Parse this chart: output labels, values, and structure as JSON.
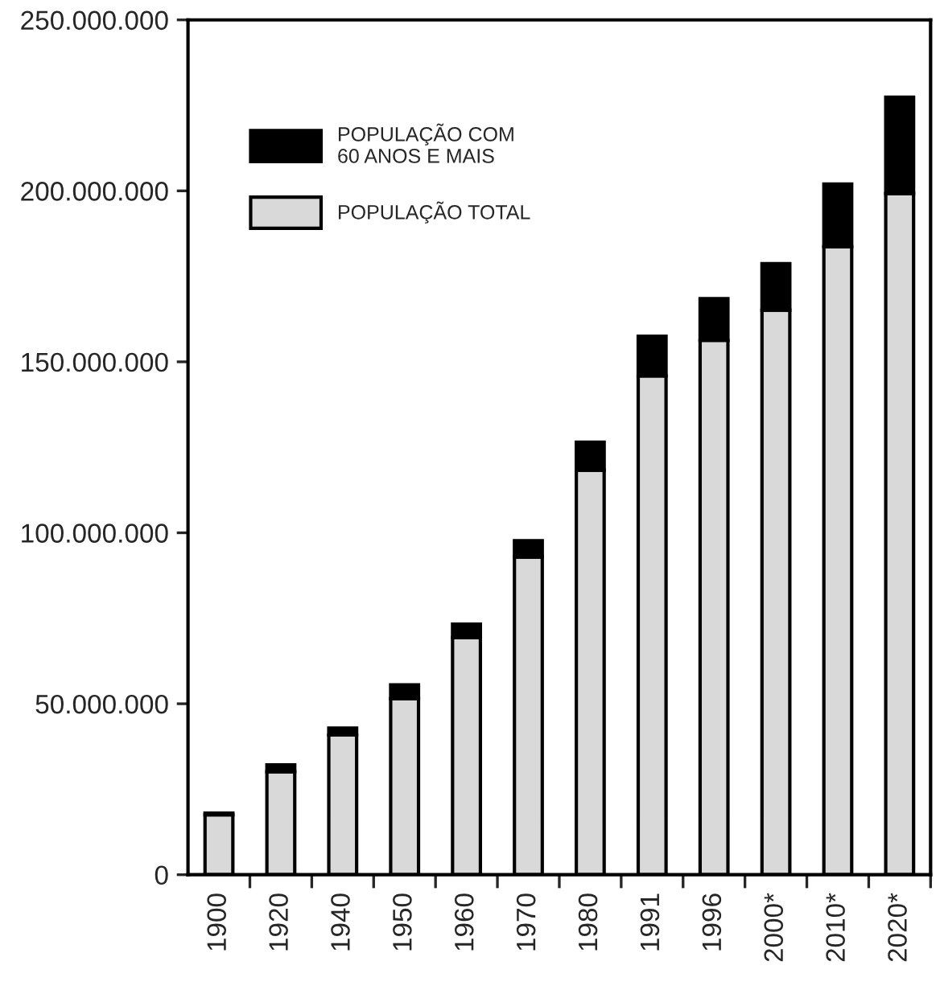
{
  "chart_data": {
    "type": "bar",
    "stacked": true,
    "categories": [
      "1900",
      "1920",
      "1940",
      "1950",
      "1960",
      "1970",
      "1980",
      "1991",
      "1996",
      "2000*",
      "2010*",
      "2020*"
    ],
    "series": [
      {
        "name": "POPULAÇÃO TOTAL",
        "color": "#d9d9d9",
        "values": [
          17500000,
          30100000,
          40900000,
          51500000,
          69300000,
          92900000,
          118300000,
          145900000,
          156300000,
          165100000,
          183700000,
          199200000
        ]
      },
      {
        "name": "POPULAÇÃO COM\n60 ANOS E MAIS",
        "color": "#000000",
        "values": [
          500000,
          2000000,
          2000000,
          4000000,
          4000000,
          4800000,
          8200000,
          11600000,
          12200000,
          13600000,
          18300000,
          28200000
        ]
      }
    ],
    "ylim": [
      0,
      250000000
    ],
    "yticks": [
      {
        "value": 0,
        "label": "0"
      },
      {
        "value": 50000000,
        "label": "50.000.000"
      },
      {
        "value": 100000000,
        "label": "100.000.000"
      },
      {
        "value": 150000000,
        "label": "150.000.000"
      },
      {
        "value": 200000000,
        "label": "200.000.000"
      },
      {
        "value": 250000000,
        "label": "250.000.000"
      }
    ],
    "legend": "top left",
    "grid": false
  }
}
